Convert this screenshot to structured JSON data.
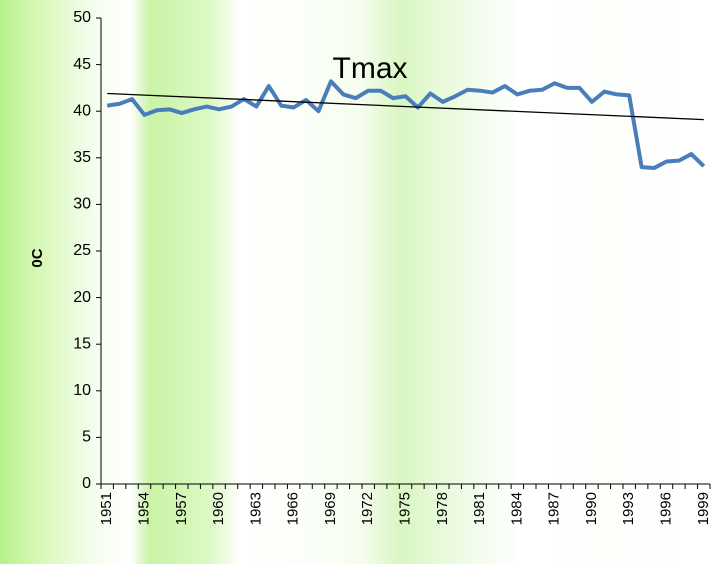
{
  "chart_data": {
    "type": "line",
    "title": "Tmax",
    "y_label": "0C",
    "categories": [
      "1951",
      null,
      null,
      "1954",
      null,
      null,
      "1957",
      null,
      null,
      "1960",
      null,
      null,
      "1963",
      null,
      null,
      "1966",
      null,
      null,
      "1969",
      null,
      null,
      "1972",
      null,
      null,
      "1975",
      null,
      null,
      "1978",
      null,
      null,
      "1981",
      null,
      null,
      "1984",
      null,
      null,
      "1987",
      null,
      null,
      "1990",
      null,
      null,
      "1993",
      null,
      null,
      "1996",
      null,
      null,
      "1999"
    ],
    "series": [
      {
        "name": "Tmax",
        "color": "#4a7ebb",
        "values": [
          40.6,
          40.8,
          41.3,
          39.6,
          40.1,
          40.2,
          39.8,
          40.2,
          40.5,
          40.2,
          40.5,
          41.3,
          40.5,
          42.7,
          40.6,
          40.4,
          41.2,
          40.0,
          43.2,
          41.8,
          41.4,
          42.2,
          42.2,
          41.4,
          41.6,
          40.4,
          41.9,
          41.0,
          41.6,
          42.3,
          42.2,
          42.0,
          42.7,
          41.8,
          42.2,
          42.3,
          43.0,
          42.5,
          42.5,
          41.0,
          42.1,
          41.8,
          41.7,
          34.0,
          33.9,
          34.6,
          34.7,
          35.4,
          34.1
        ]
      }
    ],
    "trendline": {
      "color": "#000000",
      "values": [
        41.9,
        39.1
      ]
    },
    "ylim": [
      0,
      50
    ],
    "yticks": [
      0,
      5,
      10,
      15,
      20,
      25,
      30,
      35,
      40,
      45,
      50
    ]
  }
}
